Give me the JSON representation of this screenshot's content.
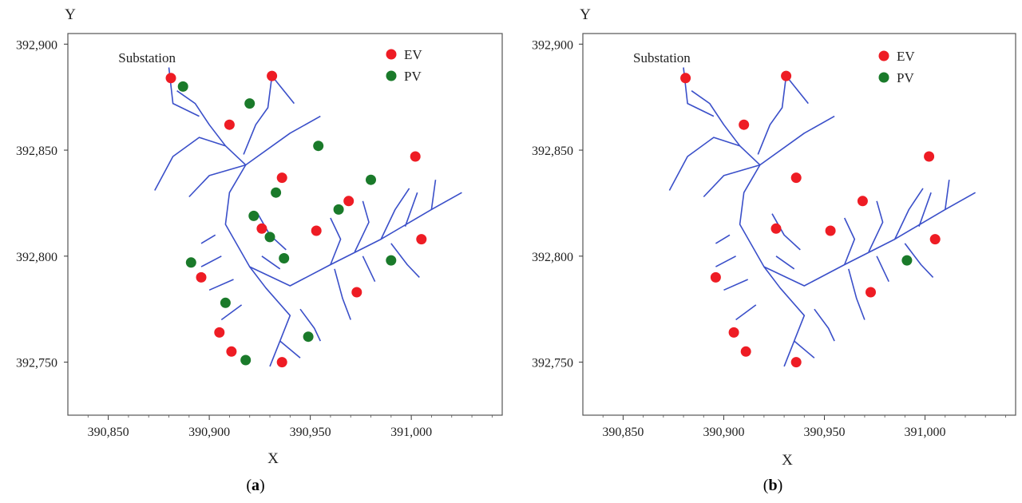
{
  "colors": {
    "ev": "#ee1c24",
    "pv": "#1a7a2a",
    "network": "#3a4fc9",
    "frame": "#555555"
  },
  "chart_data": [
    {
      "type": "scatter",
      "panel_label": "(a)",
      "caption_letter": "a",
      "xlabel": "X",
      "ylabel": "Y",
      "xlim": [
        390830,
        391045
      ],
      "ylim": [
        392725,
        392905
      ],
      "x_ticks": [
        390850,
        390900,
        390950,
        391000
      ],
      "x_tick_labels": [
        "390,850",
        "390,900",
        "390,950",
        "391,000"
      ],
      "y_ticks": [
        392750,
        392800,
        392850,
        392900
      ],
      "y_tick_labels": [
        "392,750",
        "392,800",
        "392,850",
        "392,900"
      ],
      "annotation": "Substation",
      "legend": [
        {
          "name": "EV"
        },
        {
          "name": "PV"
        }
      ],
      "legend_position": "top-right",
      "grid": false,
      "series": [
        {
          "name": "EV",
          "points": [
            [
              390881,
              392884
            ],
            [
              390931,
              392885
            ],
            [
              390910,
              392862
            ],
            [
              390936,
              392837
            ],
            [
              391002,
              392847
            ],
            [
              390969,
              392826
            ],
            [
              390953,
              392812
            ],
            [
              390926,
              392813
            ],
            [
              391005,
              392808
            ],
            [
              390896,
              392790
            ],
            [
              390973,
              392783
            ],
            [
              390905,
              392764
            ],
            [
              390911,
              392755
            ],
            [
              390936,
              392750
            ]
          ]
        },
        {
          "name": "PV",
          "points": [
            [
              390887,
              392880
            ],
            [
              390920,
              392872
            ],
            [
              390954,
              392852
            ],
            [
              390980,
              392836
            ],
            [
              390933,
              392830
            ],
            [
              390964,
              392822
            ],
            [
              390922,
              392819
            ],
            [
              390930,
              392809
            ],
            [
              390891,
              392797
            ],
            [
              390937,
              392799
            ],
            [
              390990,
              392798
            ],
            [
              390908,
              392778
            ],
            [
              390949,
              392762
            ],
            [
              390918,
              392751
            ]
          ]
        }
      ]
    },
    {
      "type": "scatter",
      "panel_label": "(b)",
      "caption_letter": "b",
      "xlabel": "X",
      "ylabel": "Y",
      "xlim": [
        390830,
        391045
      ],
      "ylim": [
        392725,
        392905
      ],
      "x_ticks": [
        390850,
        390900,
        390950,
        391000
      ],
      "x_tick_labels": [
        "390,850",
        "390,900",
        "390,950",
        "391,000"
      ],
      "y_ticks": [
        392750,
        392800,
        392850,
        392900
      ],
      "y_tick_labels": [
        "392,750",
        "392,800",
        "392,850",
        "392,900"
      ],
      "annotation": "Substation",
      "legend": [
        {
          "name": "EV"
        },
        {
          "name": "PV"
        }
      ],
      "legend_position": "top-right",
      "grid": false,
      "series": [
        {
          "name": "EV",
          "points": [
            [
              390881,
              392884
            ],
            [
              390931,
              392885
            ],
            [
              390910,
              392862
            ],
            [
              390936,
              392837
            ],
            [
              391002,
              392847
            ],
            [
              390969,
              392826
            ],
            [
              390953,
              392812
            ],
            [
              390926,
              392813
            ],
            [
              391005,
              392808
            ],
            [
              390896,
              392790
            ],
            [
              390973,
              392783
            ],
            [
              390905,
              392764
            ],
            [
              390911,
              392755
            ],
            [
              390936,
              392750
            ]
          ]
        },
        {
          "name": "PV",
          "points": [
            [
              390991,
              392798
            ]
          ]
        }
      ]
    }
  ]
}
